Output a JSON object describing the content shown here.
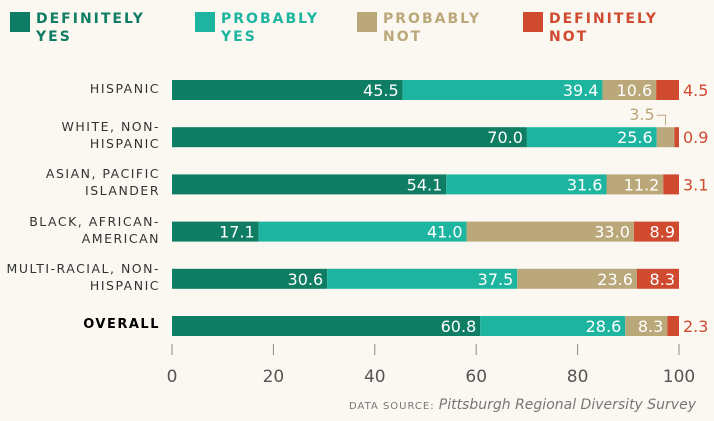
{
  "chart_data": {
    "type": "stacked_bar_horizontal",
    "categories": [
      "HISPANIC",
      "WHITE, NON-HISPANIC",
      "ASIAN, PACIFIC ISLANDER",
      "BLACK, AFRICAN-AMERICAN",
      "MULTI-RACIAL, NON-HISPANIC",
      "OVERALL"
    ],
    "series": [
      {
        "name": "DEFINITELY YES",
        "color": "#0f7d63",
        "values": [
          45.5,
          70.0,
          54.1,
          17.1,
          30.6,
          60.8
        ],
        "value_labels": [
          "45.5",
          "70.0",
          "54.1",
          "17.1",
          "30.6",
          "60.8"
        ]
      },
      {
        "name": "PROBABLY YES",
        "color": "#1db5a0",
        "values": [
          39.4,
          25.6,
          31.6,
          41.0,
          37.5,
          28.6
        ],
        "value_labels": [
          "39.4",
          "25.6",
          "31.6",
          "41.0",
          "37.5",
          "28.6"
        ]
      },
      {
        "name": "PROBABLY NOT",
        "color": "#bba87a",
        "values": [
          10.6,
          3.5,
          11.2,
          33.0,
          23.6,
          8.3
        ],
        "value_labels": [
          "10.6",
          "3.5",
          "11.2",
          "33.0",
          "23.6",
          "8.3"
        ]
      },
      {
        "name": "DEFINITELY NOT",
        "color": "#d04a2f",
        "values": [
          4.5,
          0.9,
          3.1,
          8.9,
          8.3,
          2.3
        ],
        "value_labels": [
          "4.5",
          "0.9",
          "3.1",
          "8.9",
          "8.3",
          "2.3"
        ]
      }
    ],
    "xlim": [
      0,
      100
    ],
    "xticks": [
      0,
      20,
      40,
      60,
      80,
      100
    ],
    "source_label": "DATA SOURCE:",
    "source": "Pittsburgh Regional Diversity Survey"
  }
}
